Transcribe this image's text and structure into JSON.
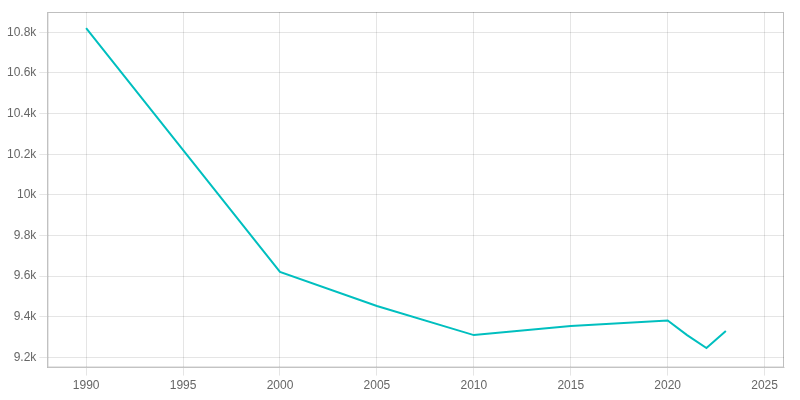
{
  "chart_data": {
    "type": "line",
    "x": [
      1990,
      2000,
      2005,
      2010,
      2015,
      2020,
      2021,
      2022,
      2023
    ],
    "values": [
      10821,
      9621,
      9453,
      9310,
      9355,
      9382,
      9310,
      9246,
      9330
    ],
    "color": "#00BFBF",
    "xlim": [
      1988,
      2026
    ],
    "ylim": [
      9150,
      10900
    ],
    "xticks": [
      1990,
      1995,
      2000,
      2005,
      2010,
      2015,
      2020,
      2025
    ],
    "yticks": [
      {
        "value": 9200,
        "label": "9.2k"
      },
      {
        "value": 9400,
        "label": "9.4k"
      },
      {
        "value": 9600,
        "label": "9.6k"
      },
      {
        "value": 9800,
        "label": "9.8k"
      },
      {
        "value": 10000,
        "label": "10k"
      },
      {
        "value": 10200,
        "label": "10.2k"
      },
      {
        "value": 10400,
        "label": "10.4k"
      },
      {
        "value": 10600,
        "label": "10.6k"
      },
      {
        "value": 10800,
        "label": "10.8k"
      }
    ],
    "grid": true
  }
}
